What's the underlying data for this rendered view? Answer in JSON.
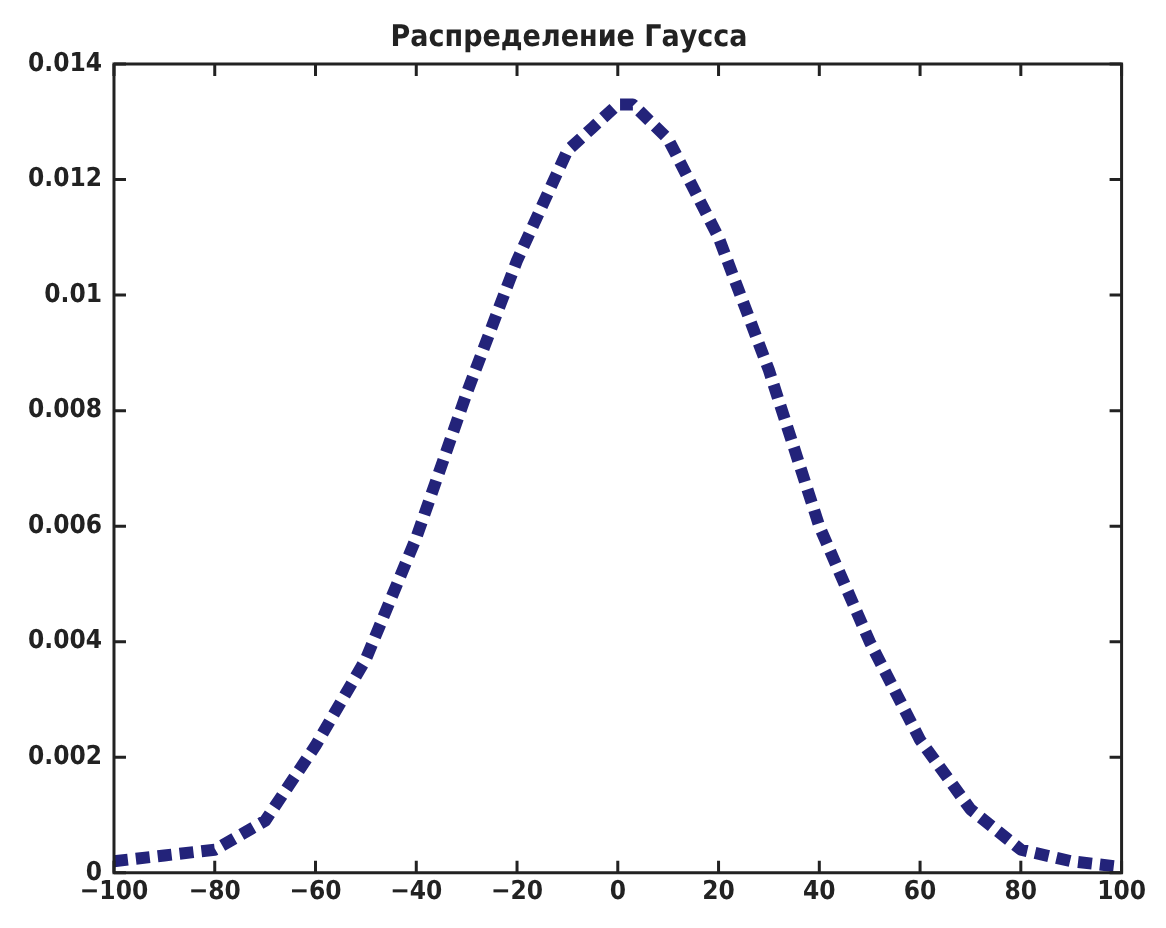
{
  "chart_data": {
    "type": "line",
    "title": "Распределение Гаусса",
    "x": [
      -100,
      -90,
      -80,
      -70,
      -60,
      -50,
      -40,
      -30,
      -20,
      -10,
      -5,
      0,
      3,
      10,
      20,
      30,
      40,
      50,
      60,
      70,
      80,
      90,
      100
    ],
    "series": [
      {
        "color": "#23237a",
        "values": [
          0.0002,
          0.0003,
          0.0004,
          0.0009,
          0.0022,
          0.0037,
          0.0058,
          0.0083,
          0.0106,
          0.0125,
          0.0129,
          0.0133,
          0.0133,
          0.0127,
          0.011,
          0.0087,
          0.006,
          0.004,
          0.0023,
          0.0011,
          0.0004,
          0.0002,
          0.0001
        ]
      }
    ],
    "xlim": [
      -100,
      100
    ],
    "xticks": [
      -100,
      -80,
      -60,
      -40,
      -20,
      0,
      20,
      40,
      60,
      80,
      100
    ],
    "ylim": [
      0,
      0.014
    ],
    "yticks": [
      0,
      0.002,
      0.004,
      0.006,
      0.008,
      0.01,
      0.012,
      0.014
    ],
    "grid": false,
    "legend": false,
    "marker": "none",
    "line_style": "dashed"
  }
}
